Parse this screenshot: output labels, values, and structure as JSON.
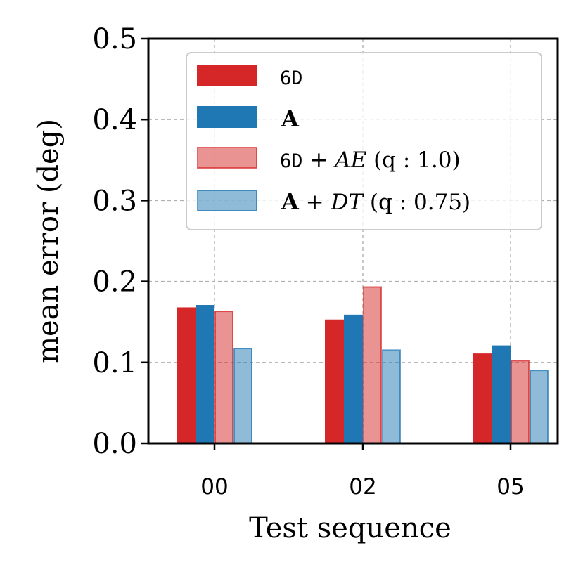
{
  "chart_data": {
    "type": "bar",
    "title": "",
    "xlabel": "Test sequence",
    "ylabel": "mean error (deg)",
    "ylim": [
      0,
      0.5
    ],
    "yticks": [
      "0.0",
      "0.1",
      "0.2",
      "0.3",
      "0.4",
      "0.5"
    ],
    "categories": [
      "00",
      "02",
      "05"
    ],
    "grid": true,
    "legend_position": "top-right",
    "series": [
      {
        "name": "6D",
        "color": "#d62728",
        "style": "solid",
        "values": [
          0.168,
          0.153,
          0.111
        ]
      },
      {
        "name": "A",
        "color": "#1f77b4",
        "style": "solid",
        "values": [
          0.171,
          0.159,
          0.121
        ]
      },
      {
        "name": "6D + AE (q : 1.0)",
        "color": "#d62728",
        "style": "translucent",
        "values": [
          0.164,
          0.194,
          0.103
        ]
      },
      {
        "name": "A + DT (q : 0.75)",
        "color": "#1f77b4",
        "style": "translucent",
        "values": [
          0.118,
          0.116,
          0.091
        ]
      }
    ]
  },
  "legend": {
    "s1": {
      "label": "6D"
    },
    "s2": {
      "label": "A"
    },
    "s3": {
      "label_prefix": "6D",
      "label_mid": " + ",
      "label_math": "AE",
      "label_suffix": " (q : 1.0)"
    },
    "s4": {
      "label_prefix": "A",
      "label_mid": " + ",
      "label_math": "DT",
      "label_suffix": " (q : 0.75)"
    }
  }
}
